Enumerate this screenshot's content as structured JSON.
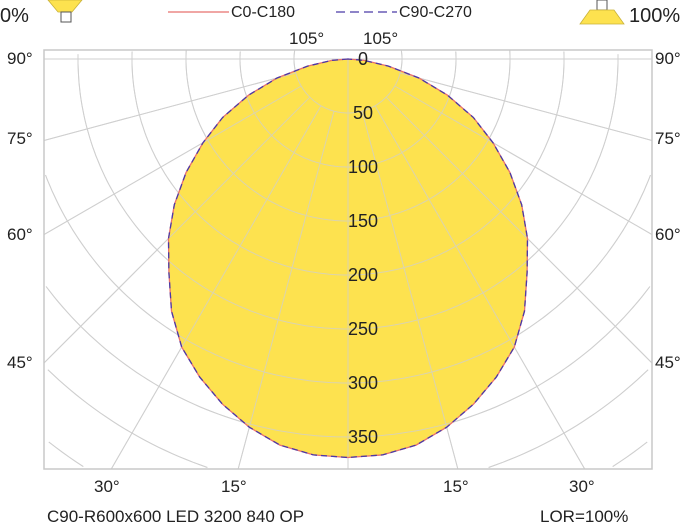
{
  "header": {
    "left_percent": "0%",
    "right_percent": "100%",
    "left_icon": "downlight-luminaire-icon",
    "right_icon": "uplight-luminaire-icon"
  },
  "footer": {
    "luminaire_name": "C90-R600x600 LED 3200 840 OP",
    "lor": "LOR=100%"
  },
  "chart_data": {
    "type": "polar",
    "title": "",
    "legend_position": "top",
    "radial_ticks": [
      "0",
      "50",
      "100",
      "150",
      "200",
      "250",
      "300",
      "350"
    ],
    "radial_tick_values": [
      0,
      50,
      100,
      150,
      200,
      250,
      300,
      350
    ],
    "angle_labels": {
      "top": [
        "105°",
        "105°"
      ],
      "left": [
        "90°",
        "75°",
        "60°",
        "45°"
      ],
      "right": [
        "90°",
        "75°",
        "60°",
        "45°"
      ],
      "bottom": [
        "30°",
        "15°",
        "15°",
        "30°"
      ]
    },
    "angle_gridlines": [
      15,
      30,
      45,
      60,
      75,
      90,
      105
    ],
    "grid": true,
    "fill_color": "#fde24f",
    "series": [
      {
        "name": "C0-C180",
        "color": "#e8706e",
        "dash": "solid",
        "angles": [
          0,
          5,
          10,
          15,
          20,
          25,
          30,
          35,
          40,
          45,
          50,
          55,
          60,
          65,
          70,
          75,
          80,
          85,
          90
        ],
        "values": [
          369,
          368,
          363,
          353,
          340,
          325,
          308,
          285,
          258,
          235,
          210,
          183,
          155,
          128,
          98,
          68,
          38,
          15,
          0
        ]
      },
      {
        "name": "C90-C270",
        "color": "#4a3aa8",
        "dash": "dashed",
        "angles": [
          0,
          5,
          10,
          15,
          20,
          25,
          30,
          35,
          40,
          45,
          50,
          55,
          60,
          65,
          70,
          75,
          80,
          85,
          90
        ],
        "values": [
          369,
          368,
          363,
          353,
          340,
          325,
          308,
          285,
          258,
          235,
          210,
          183,
          155,
          128,
          98,
          68,
          38,
          15,
          0
        ]
      }
    ]
  }
}
